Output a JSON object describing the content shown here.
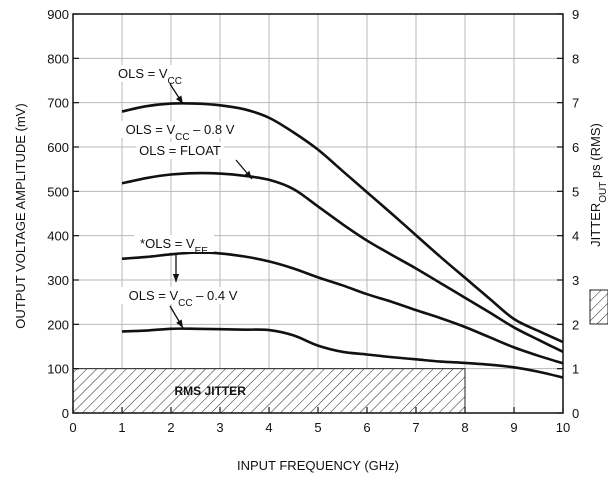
{
  "chart_data": {
    "type": "line",
    "title": "",
    "xlabel": "INPUT FREQUENCY (GHz)",
    "ylabel": "OUTPUT VOLTAGE AMPLITUDE (mV)",
    "y2label": "JITTER",
    "y2label_sub": "OUT",
    "y2label_suffix": " ps (RMS)",
    "xlim": [
      0,
      10
    ],
    "ylim": [
      0,
      900
    ],
    "y2lim": [
      0,
      9
    ],
    "xticks": [
      0,
      1,
      2,
      3,
      4,
      5,
      6,
      7,
      8,
      9,
      10
    ],
    "yticks": [
      0,
      100,
      200,
      300,
      400,
      500,
      600,
      700,
      800,
      900
    ],
    "y2ticks": [
      0,
      1,
      2,
      3,
      4,
      5,
      6,
      7,
      8,
      9
    ],
    "grid": true,
    "series": [
      {
        "label": {
          "prefix": "OLS = V",
          "sub": "CC",
          "suffix": ""
        },
        "x": [
          1,
          1.5,
          2,
          2.5,
          3,
          3.5,
          4,
          4.5,
          5,
          5.5,
          6,
          6.5,
          7,
          7.5,
          8,
          8.5,
          9,
          9.5,
          10
        ],
        "y": [
          680,
          692,
          698,
          698,
          694,
          685,
          666,
          633,
          594,
          546,
          498,
          450,
          401,
          352,
          305,
          258,
          212,
          185,
          160
        ]
      },
      {
        "label": {
          "prefix": "OLS = V",
          "sub": "CC",
          "suffix": " – 0.8 V"
        }
      },
      {
        "label": {
          "prefix": "OLS = FLOAT",
          "sub": "",
          "suffix": ""
        },
        "x": [
          1,
          1.5,
          2,
          2.5,
          3,
          3.5,
          4,
          4.5,
          5,
          5.5,
          6,
          6.5,
          7,
          7.5,
          8,
          8.5,
          9,
          9.5,
          10
        ],
        "y": [
          518,
          530,
          538,
          541,
          540,
          535,
          526,
          505,
          466,
          426,
          389,
          357,
          326,
          293,
          260,
          227,
          193,
          165,
          138
        ]
      },
      {
        "label": {
          "prefix": "*OLS = V",
          "sub": "EE",
          "suffix": ""
        },
        "x": [
          1,
          1.5,
          2,
          2.5,
          3,
          3.5,
          4,
          4.5,
          5,
          5.5,
          6,
          6.5,
          7,
          7.5,
          8,
          8.5,
          9,
          9.5,
          10
        ],
        "y": [
          348,
          352,
          358,
          362,
          360,
          353,
          342,
          326,
          306,
          288,
          268,
          251,
          232,
          214,
          194,
          171,
          148,
          129,
          112
        ]
      },
      {
        "label": {
          "prefix": "OLS = V",
          "sub": "CC",
          "suffix": " – 0.4 V"
        },
        "x": [
          1,
          1.5,
          2,
          2.5,
          3,
          3.5,
          4,
          4.5,
          5,
          5.5,
          6,
          6.5,
          7,
          7.5,
          8,
          8.5,
          9,
          9.5,
          10
        ],
        "y": [
          184,
          186,
          190,
          190,
          189,
          188,
          187,
          175,
          152,
          138,
          132,
          126,
          121,
          116,
          113,
          109,
          103,
          93,
          80
        ]
      }
    ],
    "annotations": {
      "hatch_label": "RMS JITTER",
      "hatch_range_x": [
        0,
        8
      ],
      "hatch_range_y2": [
        0,
        1
      ],
      "legend_hatch": true
    }
  }
}
